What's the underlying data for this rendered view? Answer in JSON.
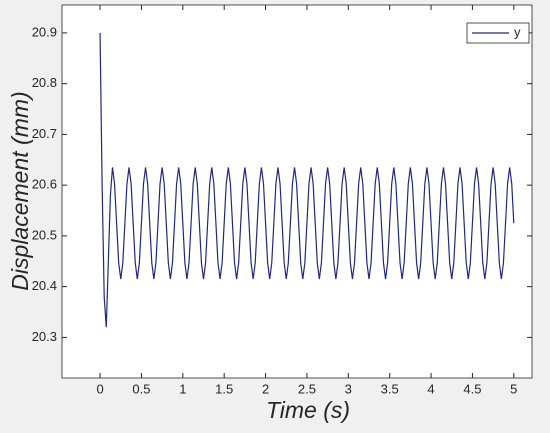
{
  "chart_data": {
    "type": "line",
    "xlabel": "Time (s)",
    "ylabel": "Displacement (mm)",
    "x": [
      0,
      0.025,
      0.05,
      0.075,
      0.1,
      0.125,
      0.15,
      0.175,
      0.2,
      0.225,
      0.25,
      0.275,
      0.3,
      0.325,
      0.35,
      0.375,
      0.4,
      0.425,
      0.45,
      0.475,
      0.5,
      0.525,
      0.55,
      0.575,
      0.6,
      0.625,
      0.65,
      0.675,
      0.7,
      0.725,
      0.75,
      0.775,
      0.8,
      0.825,
      0.85,
      0.875,
      0.9,
      0.925,
      0.95,
      0.975,
      1,
      1.025,
      1.05,
      1.075,
      1.1,
      1.125,
      1.15,
      1.175,
      1.2,
      1.225,
      1.25,
      1.275,
      1.3,
      1.325,
      1.35,
      1.375,
      1.4,
      1.425,
      1.45,
      1.475,
      1.5,
      1.525,
      1.55,
      1.575,
      1.6,
      1.625,
      1.65,
      1.675,
      1.7,
      1.725,
      1.75,
      1.775,
      1.8,
      1.825,
      1.85,
      1.875,
      1.9,
      1.925,
      1.95,
      1.975,
      2,
      2.025,
      2.05,
      2.075,
      2.1,
      2.125,
      2.15,
      2.175,
      2.2,
      2.225,
      2.25,
      2.275,
      2.3,
      2.325,
      2.35,
      2.375,
      2.4,
      2.425,
      2.45,
      2.475,
      2.5,
      2.525,
      2.55,
      2.575,
      2.6,
      2.625,
      2.65,
      2.675,
      2.7,
      2.725,
      2.75,
      2.775,
      2.8,
      2.825,
      2.85,
      2.875,
      2.9,
      2.925,
      2.95,
      2.975,
      3,
      3.025,
      3.05,
      3.075,
      3.1,
      3.125,
      3.15,
      3.175,
      3.2,
      3.225,
      3.25,
      3.275,
      3.3,
      3.325,
      3.35,
      3.375,
      3.4,
      3.425,
      3.45,
      3.475,
      3.5,
      3.525,
      3.55,
      3.575,
      3.6,
      3.625,
      3.65,
      3.675,
      3.7,
      3.725,
      3.75,
      3.775,
      3.8,
      3.825,
      3.85,
      3.875,
      3.9,
      3.925,
      3.95,
      3.975,
      4,
      4.025,
      4.05,
      4.075,
      4.1,
      4.125,
      4.15,
      4.175,
      4.2,
      4.225,
      4.25,
      4.275,
      4.3,
      4.325,
      4.35,
      4.375,
      4.4,
      4.425,
      4.45,
      4.475,
      4.5,
      4.525,
      4.55,
      4.575,
      4.6,
      4.625,
      4.65,
      4.675,
      4.7,
      4.725,
      4.75,
      4.775,
      4.8,
      4.825,
      4.85,
      4.875,
      4.9,
      4.925,
      4.95,
      4.975,
      5
    ],
    "series": [
      {
        "name": "y",
        "color": "#1f2a7a",
        "values": [
          20.9,
          20.6,
          20.38,
          20.32,
          20.45,
          20.58,
          20.635,
          20.603,
          20.525,
          20.447,
          20.415,
          20.447,
          20.525,
          20.603,
          20.635,
          20.603,
          20.525,
          20.447,
          20.415,
          20.447,
          20.525,
          20.603,
          20.635,
          20.603,
          20.525,
          20.447,
          20.415,
          20.447,
          20.525,
          20.603,
          20.635,
          20.603,
          20.525,
          20.447,
          20.415,
          20.447,
          20.525,
          20.603,
          20.635,
          20.603,
          20.525,
          20.447,
          20.415,
          20.447,
          20.525,
          20.603,
          20.635,
          20.603,
          20.525,
          20.447,
          20.415,
          20.447,
          20.525,
          20.603,
          20.635,
          20.603,
          20.525,
          20.447,
          20.415,
          20.447,
          20.525,
          20.603,
          20.635,
          20.603,
          20.525,
          20.447,
          20.415,
          20.447,
          20.525,
          20.603,
          20.635,
          20.603,
          20.525,
          20.447,
          20.415,
          20.447,
          20.525,
          20.603,
          20.635,
          20.603,
          20.525,
          20.447,
          20.415,
          20.447,
          20.525,
          20.603,
          20.635,
          20.603,
          20.525,
          20.447,
          20.415,
          20.447,
          20.525,
          20.603,
          20.635,
          20.603,
          20.525,
          20.447,
          20.415,
          20.447,
          20.525,
          20.603,
          20.635,
          20.603,
          20.525,
          20.447,
          20.415,
          20.447,
          20.525,
          20.603,
          20.635,
          20.603,
          20.525,
          20.447,
          20.415,
          20.447,
          20.525,
          20.603,
          20.635,
          20.603,
          20.525,
          20.447,
          20.415,
          20.447,
          20.525,
          20.603,
          20.635,
          20.603,
          20.525,
          20.447,
          20.415,
          20.447,
          20.525,
          20.603,
          20.635,
          20.603,
          20.525,
          20.447,
          20.415,
          20.447,
          20.525,
          20.603,
          20.635,
          20.603,
          20.525,
          20.447,
          20.415,
          20.447,
          20.525,
          20.603,
          20.635,
          20.603,
          20.525,
          20.447,
          20.415,
          20.447,
          20.525,
          20.603,
          20.635,
          20.603,
          20.525,
          20.447,
          20.415,
          20.447,
          20.525,
          20.603,
          20.635,
          20.603,
          20.525,
          20.447,
          20.415,
          20.447,
          20.525,
          20.603,
          20.635,
          20.603,
          20.525,
          20.447,
          20.415,
          20.447,
          20.525,
          20.603,
          20.635,
          20.603,
          20.525,
          20.447,
          20.415,
          20.447,
          20.525,
          20.603,
          20.635,
          20.603,
          20.525,
          20.447,
          20.415,
          20.447,
          20.525,
          20.603,
          20.635,
          20.603,
          20.525
        ]
      }
    ],
    "xlim": [
      -0.46,
      5.22
    ],
    "xticks": [
      0,
      0.5,
      1,
      1.5,
      2,
      2.5,
      3,
      3.5,
      4,
      4.5,
      5
    ],
    "ylim": [
      20.22,
      20.955
    ],
    "yticks": [
      20.3,
      20.4,
      20.5,
      20.6,
      20.7,
      20.8,
      20.9
    ],
    "legend": "top-right",
    "grid": false
  }
}
